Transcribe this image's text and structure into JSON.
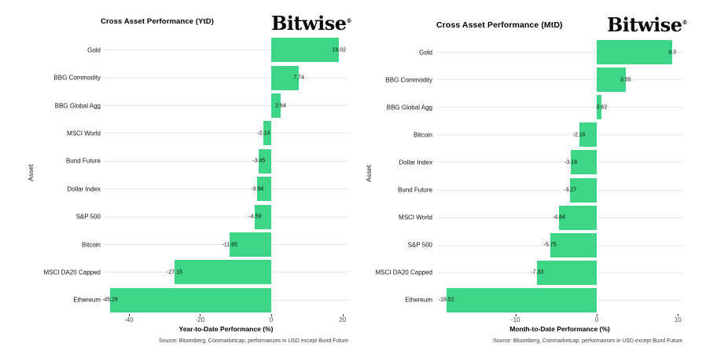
{
  "logo": {
    "text": "Bitwise",
    "registered": "®"
  },
  "chart_data": [
    {
      "type": "bar",
      "orientation": "horizontal",
      "title": "Cross Asset Performance (YtD)",
      "ylabel": "Asset",
      "xlabel": "Year-to-Date Performance (%)",
      "categories": [
        "Gold",
        "BBG Commodity",
        "BBG Global Agg",
        "MSCI World",
        "Bund Future",
        "Dollar Index",
        "S&P 500",
        "Bitcoin",
        "MSCI DA20 Capped",
        "Ethereum"
      ],
      "values": [
        19.02,
        7.74,
        2.64,
        -2.14,
        -3.45,
        -3.94,
        -4.59,
        -11.65,
        -27.15,
        -45.28
      ],
      "xticks": [
        -40,
        -20,
        0,
        20
      ],
      "xlim": [
        -47.0,
        21.6
      ],
      "bar_color": "#3ed586",
      "grid": "horizontal-only",
      "legend": "none",
      "source": "Source: Bloomberg, Coinmarketcap; performances in USD except Bund Future"
    },
    {
      "type": "bar",
      "orientation": "horizontal",
      "title": "Cross Asset Performance (MtD)",
      "ylabel": "Asset",
      "xlabel": "Month-to-Date Performance (%)",
      "categories": [
        "Gold",
        "BBG Commodity",
        "BBG Global Agg",
        "Bitcoin",
        "Dollar Index",
        "Bund Future",
        "MSCI World",
        "S&P 500",
        "MSCI DA20 Capped",
        "Ethereum"
      ],
      "values": [
        9.3,
        3.55,
        0.62,
        -2.16,
        -3.16,
        -3.27,
        -4.64,
        -5.75,
        -7.33,
        -18.52
      ],
      "xticks": [
        -10,
        0,
        10
      ],
      "xlim": [
        -19.65,
        10.55
      ],
      "bar_color": "#3ed586",
      "grid": "horizontal-only",
      "legend": "none",
      "source": "Source: Bloomberg, Coinmarketcap; performances in USD except Bund Future"
    }
  ]
}
